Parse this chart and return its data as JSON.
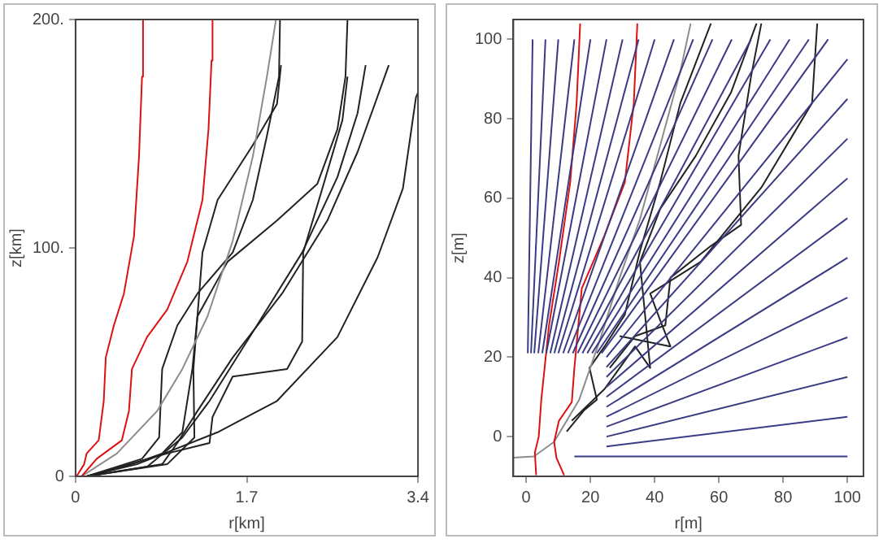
{
  "chart_data": [
    {
      "type": "line",
      "xlabel": "r[km]",
      "ylabel": "z[km]",
      "xlim": [
        0,
        3.4
      ],
      "xticks": [
        0,
        1.7,
        3.4
      ],
      "ylim": [
        0,
        200
      ],
      "yticks": [
        0,
        {
          "value": 100,
          "label": "100."
        },
        {
          "value": 200,
          "label": "200."
        }
      ],
      "grid": false,
      "legend": false,
      "marker": "none",
      "line_style": "solid",
      "series": [
        {
          "color": "#dd1111",
          "x": [
            0.01,
            0.085,
            0.11,
            0.23,
            0.28,
            0.3,
            0.38,
            0.48,
            0.58,
            0.63,
            0.66,
            0.67
          ],
          "values": [
            0,
            5.3,
            10,
            15.8,
            33,
            52,
            66,
            80,
            105,
            140,
            175,
            200
          ]
        },
        {
          "color": "#dd1111",
          "x": [
            0.06,
            0.21,
            0.46,
            0.53,
            0.56,
            0.71,
            0.91,
            1.11,
            1.26,
            1.32,
            1.35,
            1.36
          ],
          "values": [
            0,
            7.7,
            15.8,
            28.6,
            47,
            61,
            73,
            94,
            121,
            152,
            182,
            200
          ]
        },
        {
          "color": "#8c8c8c",
          "x": [
            0.06,
            0.41,
            0.81,
            1.06,
            1.31,
            1.56,
            1.76,
            1.9,
            1.99
          ],
          "values": [
            0,
            10,
            28.6,
            47,
            70,
            103,
            140,
            175,
            200
          ]
        },
        {
          "color": "#222222",
          "x": [
            0.11,
            0.56,
            0.86,
            1.06,
            1.16,
            1.21,
            1.26,
            1.41,
            1.76,
            2.0,
            2.04
          ],
          "values": [
            0,
            5.3,
            10,
            19.3,
            47,
            70,
            98,
            121,
            145,
            163,
            180
          ]
        },
        {
          "color": "#222222",
          "x": [
            0.11,
            0.91,
            1.18,
            1.17,
            1.21,
            1.51,
            2.0,
            2.4,
            2.6,
            2.68,
            2.7
          ],
          "values": [
            0,
            5.3,
            17,
            47,
            70,
            94,
            112,
            128,
            152,
            175,
            200
          ]
        },
        {
          "color": "#222222",
          "x": [
            0.11,
            0.71,
            1.06,
            1.33,
            1.8,
            2.25,
            2.6,
            2.8,
            2.88
          ],
          "values": [
            0,
            4.2,
            17,
            33,
            66,
            98,
            131,
            159,
            180
          ]
        },
        {
          "color": "#222222",
          "x": [
            0.11,
            0.86,
            1.01,
            1.21,
            1.56,
            2.05,
            2.5,
            2.8,
            3.11
          ],
          "values": [
            0,
            5.3,
            14.6,
            28.6,
            52,
            80,
            112,
            142,
            180
          ]
        },
        {
          "color": "#222222",
          "x": [
            0.11,
            0.61,
            1.41,
            2.0,
            2.6,
            3.0,
            3.25,
            3.38,
            3.4
          ],
          "values": [
            0,
            5.3,
            19.3,
            33,
            61,
            96,
            126,
            166,
            168
          ]
        },
        {
          "color": "#222222",
          "x": [
            0.11,
            0.91,
            1.33,
            1.36,
            1.56,
            2.1,
            2.25,
            2.26,
            2.45,
            2.65,
            2.7
          ],
          "values": [
            0,
            10,
            14.6,
            26,
            43.7,
            47,
            59,
            98,
            126,
            156,
            175
          ]
        },
        {
          "color": "#222222",
          "x": [
            0.11,
            0.66,
            0.83,
            0.86,
            1.01,
            1.21,
            1.56,
            1.76,
            1.9,
            2.02,
            2.03
          ],
          "values": [
            0,
            7.7,
            17,
            47,
            66,
            80,
            98,
            121,
            149,
            175,
            200
          ]
        }
      ]
    },
    {
      "type": "line",
      "xlabel": "r[m]",
      "ylabel": "z[m]",
      "xlim": [
        -4,
        105
      ],
      "xticks": [
        0,
        20,
        40,
        60,
        80,
        100
      ],
      "ylim": [
        -10,
        105
      ],
      "yticks": [
        0,
        20,
        40,
        60,
        80,
        100
      ],
      "grid": false,
      "legend": false,
      "marker": "none",
      "line_style": "solid",
      "series": [
        {
          "color": "#3b3b85",
          "x": [
            2,
            0.5
          ],
          "values": [
            100,
            21
          ]
        },
        {
          "color": "#3b3b85",
          "x": [
            6,
            1.5
          ],
          "values": [
            100,
            21
          ]
        },
        {
          "color": "#3b3b85",
          "x": [
            10,
            2.5
          ],
          "values": [
            100,
            21
          ]
        },
        {
          "color": "#3b3b85",
          "x": [
            15,
            3.75
          ],
          "values": [
            100,
            21
          ]
        },
        {
          "color": "#3b3b85",
          "x": [
            20,
            5
          ],
          "values": [
            100,
            21
          ]
        },
        {
          "color": "#3b3b85",
          "x": [
            25,
            6.25
          ],
          "values": [
            100,
            21
          ]
        },
        {
          "color": "#3b3b85",
          "x": [
            30,
            7.5
          ],
          "values": [
            100,
            21
          ]
        },
        {
          "color": "#3b3b85",
          "x": [
            35,
            8.75
          ],
          "values": [
            100,
            21
          ]
        },
        {
          "color": "#3b3b85",
          "x": [
            40,
            10
          ],
          "values": [
            100,
            21
          ]
        },
        {
          "color": "#3b3b85",
          "x": [
            46,
            11.5
          ],
          "values": [
            100,
            21
          ]
        },
        {
          "color": "#3b3b85",
          "x": [
            52,
            13
          ],
          "values": [
            100,
            21
          ]
        },
        {
          "color": "#3b3b85",
          "x": [
            58,
            14.5
          ],
          "values": [
            100,
            21
          ]
        },
        {
          "color": "#3b3b85",
          "x": [
            64,
            16
          ],
          "values": [
            100,
            21
          ]
        },
        {
          "color": "#3b3b85",
          "x": [
            70,
            17.5
          ],
          "values": [
            100,
            21
          ]
        },
        {
          "color": "#3b3b85",
          "x": [
            76,
            19
          ],
          "values": [
            100,
            21
          ]
        },
        {
          "color": "#3b3b85",
          "x": [
            82,
            20.5
          ],
          "values": [
            100,
            21
          ]
        },
        {
          "color": "#3b3b85",
          "x": [
            88,
            22
          ],
          "values": [
            100,
            21
          ]
        },
        {
          "color": "#3b3b85",
          "x": [
            94,
            23.5
          ],
          "values": [
            100,
            21
          ]
        },
        {
          "color": "#3b3b85",
          "x": [
            100,
            25
          ],
          "values": [
            95,
            20
          ]
        },
        {
          "color": "#3b3b85",
          "x": [
            100,
            25
          ],
          "values": [
            85,
            17.5
          ]
        },
        {
          "color": "#3b3b85",
          "x": [
            100,
            25
          ],
          "values": [
            75,
            15
          ]
        },
        {
          "color": "#3b3b85",
          "x": [
            100,
            25
          ],
          "values": [
            65,
            12.5
          ]
        },
        {
          "color": "#3b3b85",
          "x": [
            100,
            25
          ],
          "values": [
            55,
            10
          ]
        },
        {
          "color": "#3b3b85",
          "x": [
            100,
            25
          ],
          "values": [
            45,
            7.5
          ]
        },
        {
          "color": "#3b3b85",
          "x": [
            100,
            25
          ],
          "values": [
            35,
            5
          ]
        },
        {
          "color": "#3b3b85",
          "x": [
            100,
            25
          ],
          "values": [
            25,
            2.5
          ]
        },
        {
          "color": "#3b3b85",
          "x": [
            100,
            25
          ],
          "values": [
            15,
            0
          ]
        },
        {
          "color": "#3b3b85",
          "x": [
            100,
            25
          ],
          "values": [
            5,
            -2.5
          ]
        },
        {
          "color": "#3b3b85",
          "x": [
            100,
            15
          ],
          "values": [
            -5,
            -5
          ]
        },
        {
          "color": "#dd1111",
          "x": [
            3.1,
            2.7,
            3.9,
            4.7,
            7.1,
            10.2,
            13.7,
            15.7,
            16.8
          ],
          "values": [
            -9.7,
            -4,
            0,
            9.3,
            28,
            44,
            64,
            84,
            104
          ]
        },
        {
          "color": "#dd1111",
          "x": [
            11.8,
            9.4,
            8.7,
            10.2,
            14.2,
            15,
            17.3,
            24.4,
            30.7,
            33.5,
            34.6
          ],
          "values": [
            -9.7,
            -5.3,
            -1.3,
            4,
            8.7,
            17.3,
            37.3,
            50.7,
            64,
            84,
            104
          ]
        },
        {
          "color": "#8c8c8c",
          "x": [
            -3.9,
            2.4,
            8.7,
            16.5,
            22.8,
            29.1,
            35.4,
            41.7,
            48,
            51.2
          ],
          "values": [
            -5.3,
            -5,
            -1.3,
            9.3,
            24,
            40,
            54.7,
            73.3,
            92,
            104
          ]
        },
        {
          "color": "#222222",
          "x": [
            12.6,
            18.1,
            22,
            19.7,
            24.4,
            30.7,
            35.4,
            41.7,
            48,
            57.5
          ],
          "values": [
            1.3,
            6.7,
            9.3,
            17.3,
            22.7,
            30.7,
            46.7,
            64,
            84,
            104
          ]
        },
        {
          "color": "#222222",
          "x": [
            14.2,
            24.4,
            29.1,
            33.9,
            38.6,
            35.4,
            41.7,
            52.8,
            63.8,
            71.7
          ],
          "values": [
            4,
            12,
            17.3,
            22.7,
            17.3,
            44,
            57.3,
            70.7,
            86.7,
            104
          ]
        },
        {
          "color": "#222222",
          "x": [
            26,
            33.9,
            43.3,
            44.9,
            57.5,
            66.9,
            66.1,
            70,
            73.2
          ],
          "values": [
            17.3,
            25.3,
            28,
            40,
            48,
            53.3,
            70.7,
            90.7,
            104
          ]
        },
        {
          "color": "#222222",
          "x": [
            29.1,
            44.9,
            41.7,
            38.6,
            54.3,
            73.2,
            89,
            90.6
          ],
          "values": [
            25.3,
            22.7,
            29.3,
            36,
            44,
            62.7,
            84,
            104
          ]
        }
      ]
    }
  ]
}
